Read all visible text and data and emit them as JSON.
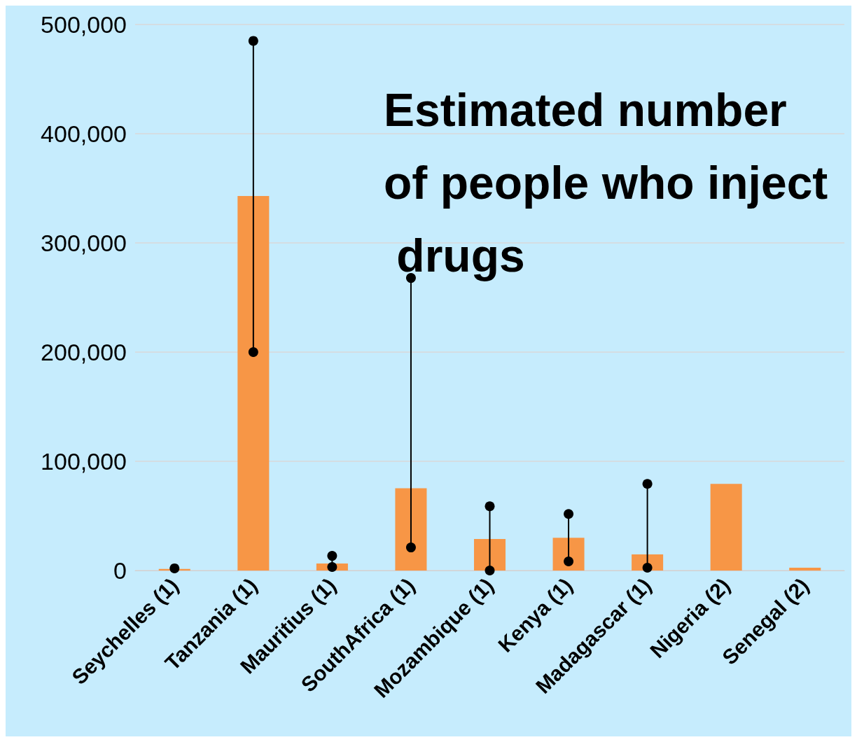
{
  "chart_data": {
    "type": "bar",
    "title": "Estimated number of people who inject drugs",
    "categories": [
      "Seychelles (1)",
      "Tanzania (1)",
      "Mauritius (1)",
      "SouthAfrica (1)",
      "Mozambique (1)",
      "Kenya (1)",
      "Madagascar (1)",
      "Nigeria (2)",
      "Senegal (2)"
    ],
    "series": [
      {
        "color": "#f79646",
        "values": [
          1500,
          343000,
          6400,
          75400,
          28800,
          30000,
          14700,
          79300,
          2600
        ]
      },
      {
        "type": "line",
        "color": "#000000",
        "x": [
          "Seychelles (1)",
          "Seychelles (1)",
          "Tanzania (1)",
          "Tanzania (1)",
          "Tanzania (1)",
          "Mauritius (1)",
          "Mauritius (1)",
          "Mauritius (1)",
          "SouthAfrica (1)",
          "SouthAfrica (1)",
          "SouthAfrica (1)",
          "Mozambique (1)",
          "Mozambique (1)",
          "Mozambique (1)",
          "Kenya (1)",
          "Kenya (1)",
          "Kenya (1)",
          "Madagascar (1)",
          "Madagascar (1)"
        ],
        "values": [
          2000,
          null,
          200000,
          485000,
          null,
          3200,
          13400,
          null,
          21100,
          267900,
          null,
          0,
          58800,
          null,
          8300,
          51800,
          null,
          2600,
          79300
        ]
      }
    ],
    "ylim": [
      0,
      500000
    ],
    "yticks": [
      {
        "value": 0,
        "label": "0"
      },
      {
        "value": 100000,
        "label": "100,000"
      },
      {
        "value": 200000,
        "label": "200,000"
      },
      {
        "value": 300000,
        "label": "300,000"
      },
      {
        "value": 400000,
        "label": "400,000"
      },
      {
        "value": 500000,
        "label": "500,000"
      }
    ],
    "grid": "y",
    "marker": "circle",
    "line_style": "solid"
  }
}
